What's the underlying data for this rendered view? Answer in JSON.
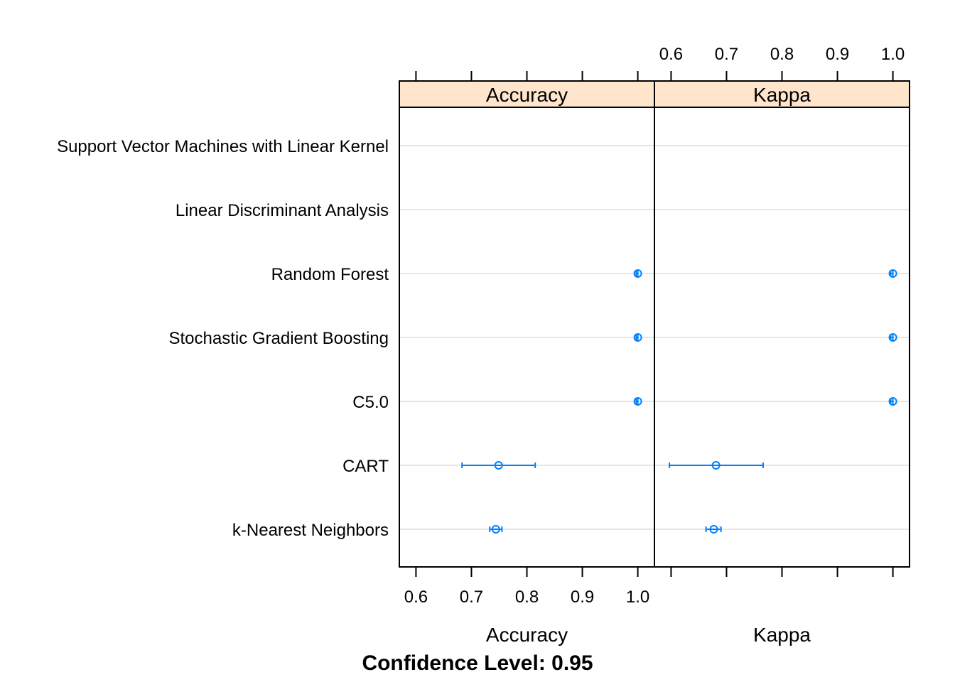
{
  "chart_data": {
    "type": "dotplot-with-intervals",
    "footer": "Confidence Level: 0.95",
    "models": [
      "Support Vector Machines with Linear Kernel",
      "Linear Discriminant Analysis",
      "Random Forest",
      "Stochastic Gradient Boosting",
      "C5.0",
      "CART",
      "k-Nearest Neighbors"
    ],
    "panels": [
      {
        "strip": "Accuracy",
        "xlabel": "Accuracy",
        "xlim": [
          0.57,
          1.03
        ],
        "ticks": [
          0.6,
          0.7,
          0.8,
          0.9,
          1.0
        ],
        "tick_labels": [
          "0.6",
          "0.7",
          "0.8",
          "0.9",
          "1.0"
        ],
        "tick_labels_position": "bottom",
        "points": [
          null,
          null,
          {
            "estimate": 1.0,
            "lower": 0.997,
            "upper": 1.0
          },
          {
            "estimate": 1.0,
            "lower": 0.997,
            "upper": 1.0
          },
          {
            "estimate": 1.0,
            "lower": 0.997,
            "upper": 1.0
          },
          {
            "estimate": 0.749,
            "lower": 0.683,
            "upper": 0.815
          },
          {
            "estimate": 0.744,
            "lower": 0.733,
            "upper": 0.755
          }
        ]
      },
      {
        "strip": "Kappa",
        "xlabel": "Kappa",
        "xlim": [
          0.57,
          1.03
        ],
        "ticks": [
          0.6,
          0.7,
          0.8,
          0.9,
          1.0
        ],
        "tick_labels": [
          "0.6",
          "0.7",
          "0.8",
          "0.9",
          "1.0"
        ],
        "tick_labels_position": "top",
        "points": [
          null,
          null,
          {
            "estimate": 1.0,
            "lower": 0.996,
            "upper": 1.0
          },
          {
            "estimate": 1.0,
            "lower": 0.996,
            "upper": 1.0
          },
          {
            "estimate": 1.0,
            "lower": 0.996,
            "upper": 1.0
          },
          {
            "estimate": 0.681,
            "lower": 0.597,
            "upper": 0.766
          },
          {
            "estimate": 0.677,
            "lower": 0.663,
            "upper": 0.69
          }
        ]
      }
    ],
    "colors": {
      "strip_fill": "#FFE5CC",
      "point": "#0080FF",
      "grid": "#E6E6E6",
      "frame": "#000000"
    }
  }
}
